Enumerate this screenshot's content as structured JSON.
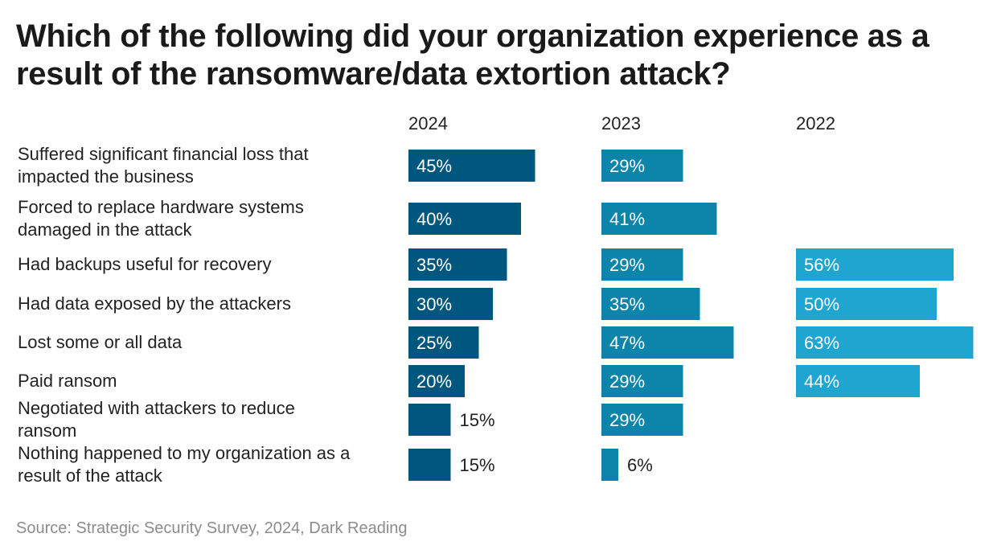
{
  "chart_data": {
    "type": "bar",
    "title": "Which of the following did your organization experience as a result of the ransomware/data extortion attack?",
    "categories": [
      "Suffered significant financial loss that impacted the business",
      "Forced to replace hardware systems damaged in the attack",
      "Had backups useful for recovery",
      "Had data exposed by the attackers",
      "Lost some or all data",
      "Paid ransom",
      "Negotiated with attackers to reduce ransom",
      "Nothing happened to my organization as a result of the attack"
    ],
    "series": [
      {
        "name": "2024",
        "color": "#00577d",
        "values": [
          45,
          40,
          35,
          30,
          25,
          20,
          15,
          15
        ]
      },
      {
        "name": "2023",
        "color": "#0d85ab",
        "values": [
          29,
          41,
          29,
          35,
          47,
          29,
          29,
          6
        ]
      },
      {
        "name": "2022",
        "color": "#1ea5d0",
        "values": [
          null,
          null,
          56,
          50,
          63,
          44,
          null,
          null
        ]
      }
    ],
    "value_suffix": "%",
    "layout": "small-multiples",
    "xlim": [
      0,
      63
    ],
    "grid": false,
    "legend": "none"
  },
  "footer": {
    "source": "Source: Strategic Security Survey, 2024, Dark Reading"
  }
}
